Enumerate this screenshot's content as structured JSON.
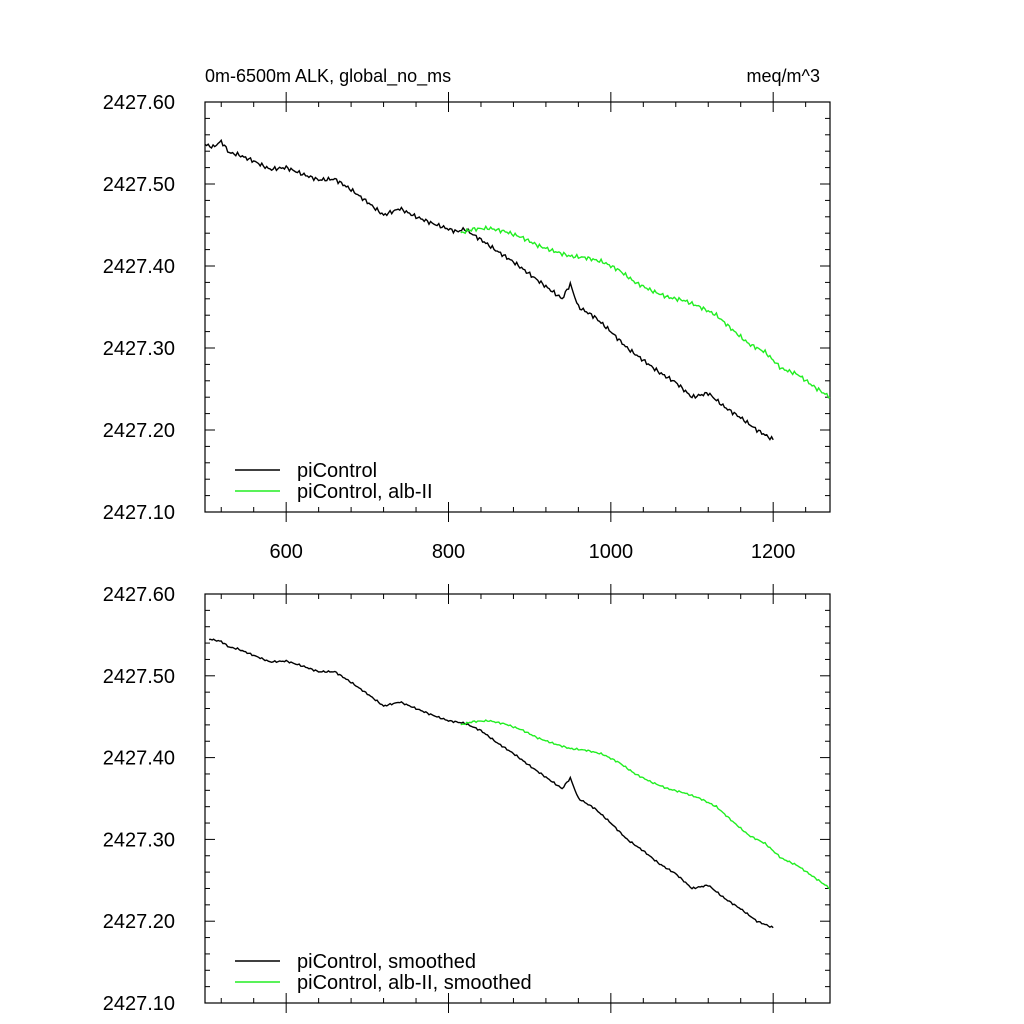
{
  "chart_data": [
    {
      "type": "line",
      "title_left": "0m-6500m ALK, global_no_ms",
      "title_right": "meq/m^3",
      "xlabel": "",
      "ylabel": "",
      "xlim": [
        500,
        1270
      ],
      "ylim": [
        2427.1,
        2427.6
      ],
      "xticks": [
        600,
        800,
        1000,
        1200
      ],
      "xtick_labels": [
        "600",
        "800",
        "1000",
        "1200"
      ],
      "show_xtick_labels": true,
      "yticks": [
        2427.1,
        2427.2,
        2427.3,
        2427.4,
        2427.5,
        2427.6
      ],
      "ytick_labels": [
        "2427.10",
        "2427.20",
        "2427.30",
        "2427.40",
        "2427.50",
        "2427.60"
      ],
      "grid": false,
      "legend_position": "bottom-left",
      "series": [
        {
          "name": "piControl",
          "color": "#000000",
          "x": [
            500,
            510,
            520,
            530,
            540,
            560,
            580,
            600,
            620,
            640,
            660,
            680,
            700,
            720,
            740,
            760,
            780,
            800,
            810,
            820,
            840,
            860,
            880,
            900,
            920,
            940,
            950,
            960,
            980,
            1000,
            1020,
            1040,
            1060,
            1080,
            1100,
            1120,
            1140,
            1160,
            1180,
            1200
          ],
          "y": [
            2427.548,
            2427.545,
            2427.552,
            2427.538,
            2427.536,
            2427.528,
            2427.518,
            2427.52,
            2427.512,
            2427.505,
            2427.506,
            2427.493,
            2427.478,
            2427.462,
            2427.47,
            2427.46,
            2427.452,
            2427.445,
            2427.442,
            2427.445,
            2427.432,
            2427.418,
            2427.405,
            2427.39,
            2427.375,
            2427.36,
            2427.378,
            2427.35,
            2427.338,
            2427.32,
            2427.3,
            2427.285,
            2427.27,
            2427.258,
            2427.24,
            2427.245,
            2427.228,
            2427.215,
            2427.2,
            2427.188
          ]
        },
        {
          "name": "piControl, alb-II",
          "color": "#22ee22",
          "x": [
            815,
            830,
            850,
            870,
            890,
            910,
            930,
            950,
            970,
            990,
            1010,
            1030,
            1050,
            1070,
            1090,
            1110,
            1130,
            1150,
            1170,
            1190,
            1210,
            1230,
            1250,
            1270
          ],
          "y": [
            2427.44,
            2427.445,
            2427.446,
            2427.442,
            2427.435,
            2427.425,
            2427.418,
            2427.412,
            2427.41,
            2427.405,
            2427.395,
            2427.38,
            2427.37,
            2427.362,
            2427.358,
            2427.35,
            2427.34,
            2427.322,
            2427.305,
            2427.295,
            2427.275,
            2427.268,
            2427.253,
            2427.24
          ]
        }
      ]
    },
    {
      "type": "line",
      "xlabel": "",
      "ylabel": "",
      "xlim": [
        500,
        1270
      ],
      "ylim": [
        2427.1,
        2427.6
      ],
      "xticks": [
        600,
        800,
        1000,
        1200
      ],
      "show_xtick_labels": false,
      "yticks": [
        2427.1,
        2427.2,
        2427.3,
        2427.4,
        2427.5,
        2427.6
      ],
      "ytick_labels": [
        "2427.10",
        "2427.20",
        "2427.30",
        "2427.40",
        "2427.50",
        "2427.60"
      ],
      "grid": false,
      "legend_position": "bottom-left",
      "series": [
        {
          "name": "piControl, smoothed",
          "color": "#000000",
          "x": [
            505,
            520,
            530,
            540,
            560,
            580,
            600,
            620,
            640,
            660,
            680,
            700,
            720,
            740,
            760,
            780,
            800,
            820,
            840,
            860,
            880,
            900,
            920,
            940,
            950,
            960,
            980,
            1000,
            1020,
            1040,
            1060,
            1080,
            1100,
            1120,
            1140,
            1160,
            1180,
            1200
          ],
          "y": [
            2427.545,
            2427.542,
            2427.535,
            2427.533,
            2427.525,
            2427.517,
            2427.518,
            2427.512,
            2427.505,
            2427.505,
            2427.492,
            2427.478,
            2427.463,
            2427.468,
            2427.46,
            2427.452,
            2427.445,
            2427.442,
            2427.433,
            2427.418,
            2427.405,
            2427.39,
            2427.376,
            2427.362,
            2427.375,
            2427.35,
            2427.338,
            2427.32,
            2427.3,
            2427.286,
            2427.27,
            2427.258,
            2427.24,
            2427.244,
            2427.228,
            2427.215,
            2427.2,
            2427.192
          ]
        },
        {
          "name": "piControl, alb-II, smoothed",
          "color": "#22ee22",
          "x": [
            815,
            830,
            850,
            870,
            890,
            910,
            930,
            950,
            970,
            990,
            1010,
            1030,
            1050,
            1070,
            1090,
            1110,
            1130,
            1150,
            1170,
            1190,
            1210,
            1230,
            1250,
            1270
          ],
          "y": [
            2427.44,
            2427.444,
            2427.445,
            2427.441,
            2427.434,
            2427.424,
            2427.417,
            2427.411,
            2427.409,
            2427.404,
            2427.394,
            2427.38,
            2427.37,
            2427.362,
            2427.357,
            2427.35,
            2427.34,
            2427.322,
            2427.305,
            2427.295,
            2427.277,
            2427.268,
            2427.254,
            2427.24
          ]
        }
      ]
    }
  ]
}
